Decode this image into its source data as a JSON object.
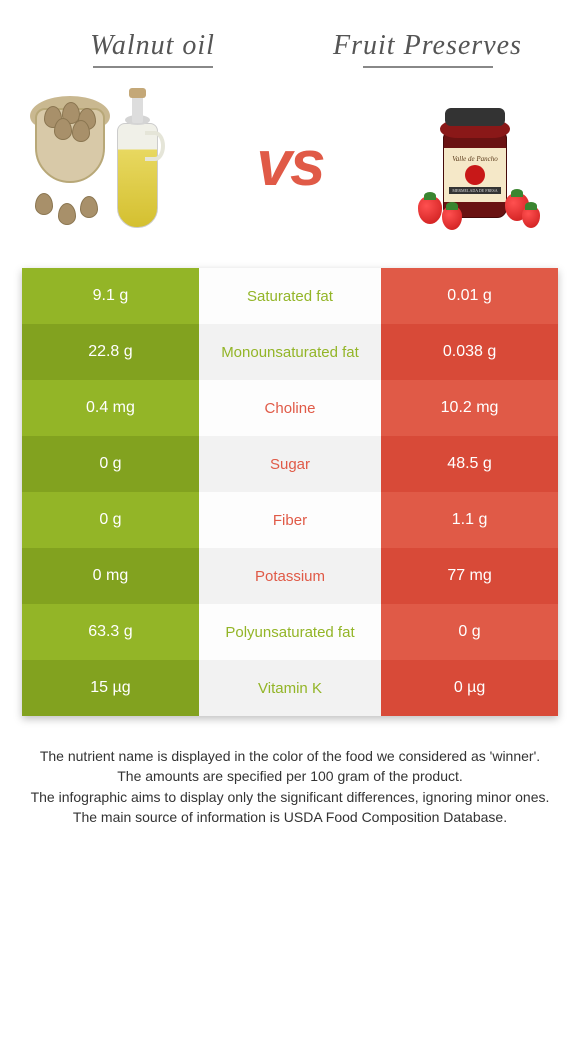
{
  "colors": {
    "left": "#93b527",
    "left_alt": "#82a21f",
    "right": "#e05a47",
    "right_alt": "#d84a38",
    "mid": "#fdfdfd",
    "mid_alt": "#f2f2f2"
  },
  "titles": {
    "left": "Walnut oil",
    "right": "Fruit Preserves",
    "vs": "vs"
  },
  "rows": [
    {
      "left": "9.1 g",
      "mid": "Saturated fat",
      "right": "0.01 g",
      "winner": "left"
    },
    {
      "left": "22.8 g",
      "mid": "Monounsaturated fat",
      "right": "0.038 g",
      "winner": "left"
    },
    {
      "left": "0.4 mg",
      "mid": "Choline",
      "right": "10.2 mg",
      "winner": "right"
    },
    {
      "left": "0 g",
      "mid": "Sugar",
      "right": "48.5 g",
      "winner": "right"
    },
    {
      "left": "0 g",
      "mid": "Fiber",
      "right": "1.1 g",
      "winner": "right"
    },
    {
      "left": "0 mg",
      "mid": "Potassium",
      "right": "77 mg",
      "winner": "right"
    },
    {
      "left": "63.3 g",
      "mid": "Polyunsaturated fat",
      "right": "0 g",
      "winner": "left"
    },
    {
      "left": "15 µg",
      "mid": "Vitamin K",
      "right": "0 µg",
      "winner": "left"
    }
  ],
  "footer": [
    "The nutrient name is displayed in the color of the food we considered as 'winner'.",
    "The amounts are specified per 100 gram of the product.",
    "The infographic aims to display only the significant differences, ignoring minor ones.",
    "The main source of information is USDA Food Composition Database."
  ]
}
